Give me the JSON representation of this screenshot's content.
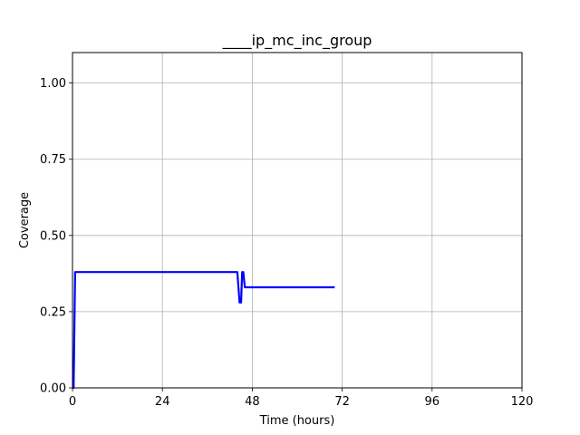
{
  "chart_data": {
    "type": "line",
    "title": "____ip_mc_inc_group",
    "xlabel": "Time (hours)",
    "ylabel": "Coverage",
    "xlim": [
      0,
      120
    ],
    "ylim": [
      0,
      1.1
    ],
    "xticks": [
      0,
      24,
      48,
      72,
      96,
      120
    ],
    "xtick_labels": [
      "0",
      "24",
      "48",
      "72",
      "96",
      "120"
    ],
    "yticks": [
      0,
      0.25,
      0.5,
      0.75,
      1.0
    ],
    "ytick_labels": [
      "0.00",
      "0.25",
      "0.50",
      "0.75",
      "1.00"
    ],
    "grid": true,
    "series": [
      {
        "color": "#0000ff",
        "x": [
          0,
          0.3,
          0.7,
          1.0,
          44.0,
          44.3,
          44.6,
          45.0,
          45.3,
          45.6,
          46.0,
          46.5,
          70.0
        ],
        "y": [
          0,
          0.0,
          0.38,
          0.38,
          0.38,
          0.33,
          0.28,
          0.28,
          0.38,
          0.38,
          0.33,
          0.33,
          0.33
        ]
      }
    ]
  }
}
